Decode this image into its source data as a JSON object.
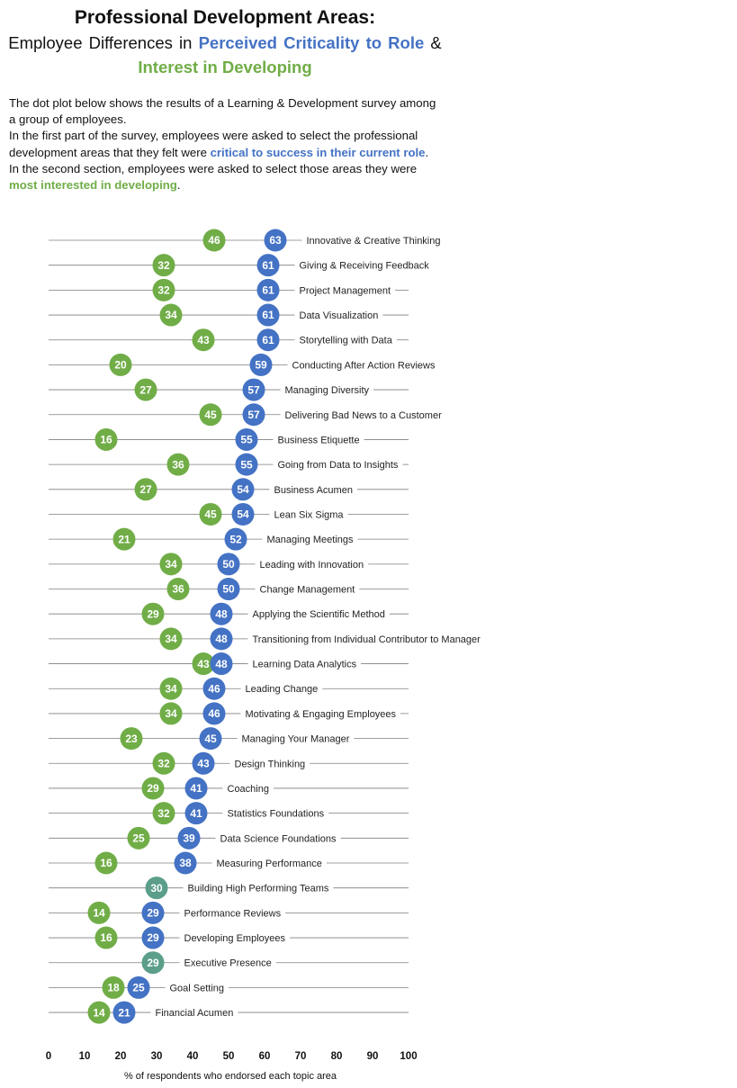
{
  "title": {
    "line1": "Professional Development Areas:",
    "line2_prefix": "Employee Differences in ",
    "line2_highlight": "Perceived Criticality to Role",
    "line2_suffix": " &",
    "line3_highlight": "Interest in Developing"
  },
  "intro": {
    "p1": "The dot plot below shows the results of a Learning & Development survey among a group of employees.",
    "p2_a": "In the first part of the survey, employees were asked to select the professional development areas that they felt were ",
    "p2_highlight1": "critical to success in their current role",
    "p2_b": ".  In the second section, employees were asked to select those areas they were ",
    "p2_highlight2": "most interested in developing",
    "p2_c": "."
  },
  "colors": {
    "criticality": "#4472C4",
    "interest": "#70AD47",
    "overlap": "#5B9E8A",
    "line": "#7f7f7f"
  },
  "chart_data": {
    "type": "dot",
    "xlabel": "% of respondents who endorsed each topic area",
    "xlim": [
      0,
      100
    ],
    "xticks": [
      0,
      10,
      20,
      30,
      40,
      50,
      60,
      70,
      80,
      90,
      100
    ],
    "categories": [
      "Innovative & Creative Thinking",
      "Giving & Receiving Feedback",
      "Project Management",
      "Data Visualization",
      "Storytelling with Data",
      "Conducting After Action Reviews",
      "Managing Diversity",
      "Delivering Bad News to a Customer",
      "Business Etiquette",
      "Going from Data to Insights",
      "Business Acumen",
      "Lean Six Sigma",
      "Managing Meetings",
      "Leading with Innovation",
      "Change Management",
      "Applying the Scientific Method",
      "Transitioning from Individual Contributor to Manager",
      "Learning Data Analytics",
      "Leading Change",
      "Motivating & Engaging Employees",
      "Managing Your Manager",
      "Design Thinking",
      "Coaching",
      "Statistics Foundations",
      "Data Science Foundations",
      "Measuring Performance",
      "Building High Performing Teams",
      "Performance Reviews",
      "Developing Employees",
      "Executive Presence",
      "Goal Setting",
      "Financial Acumen"
    ],
    "series": [
      {
        "key": "criticality",
        "values": [
          63,
          61,
          61,
          61,
          61,
          59,
          57,
          57,
          55,
          55,
          54,
          54,
          52,
          50,
          50,
          48,
          48,
          48,
          46,
          46,
          45,
          43,
          41,
          41,
          39,
          38,
          30,
          29,
          29,
          29,
          25,
          21
        ]
      },
      {
        "key": "interest",
        "values": [
          46,
          32,
          32,
          34,
          43,
          20,
          27,
          45,
          16,
          36,
          27,
          45,
          21,
          34,
          36,
          29,
          34,
          43,
          34,
          34,
          23,
          32,
          29,
          32,
          25,
          16,
          30,
          14,
          16,
          29,
          18,
          14
        ]
      }
    ]
  }
}
